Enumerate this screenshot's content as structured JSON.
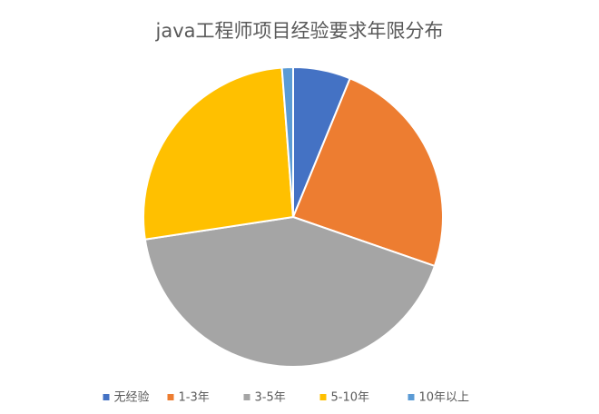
{
  "chart_data": {
    "type": "pie",
    "title": "java工程师项目经验要求年限分布",
    "categories": [
      "无经验",
      "1-3年",
      "3-5年",
      "5-10年",
      "10年以上"
    ],
    "values": [
      6.2,
      24.1,
      42.3,
      26.2,
      1.2
    ],
    "colors": [
      "#4472c4",
      "#ed7d31",
      "#a5a5a5",
      "#ffc000",
      "#5b9bd5"
    ],
    "legend": "bottom"
  }
}
